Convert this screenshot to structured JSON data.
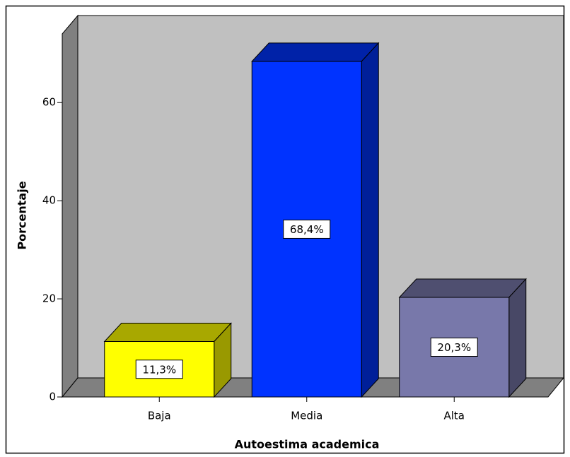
{
  "chart_data": {
    "type": "bar3d",
    "ylabel": "Porcentaje",
    "xlabel": "Autoestima academica",
    "categories": [
      "Baja",
      "Media",
      "Alta"
    ],
    "values": [
      11.3,
      68.4,
      20.3
    ],
    "value_labels": [
      "11,3%",
      "68,4%",
      "20,3%"
    ],
    "colors": [
      "#ffff00",
      "#0033ff",
      "#7878aa"
    ],
    "ylim": [
      0,
      74
    ],
    "yticks": [
      0,
      20,
      40,
      60
    ]
  }
}
